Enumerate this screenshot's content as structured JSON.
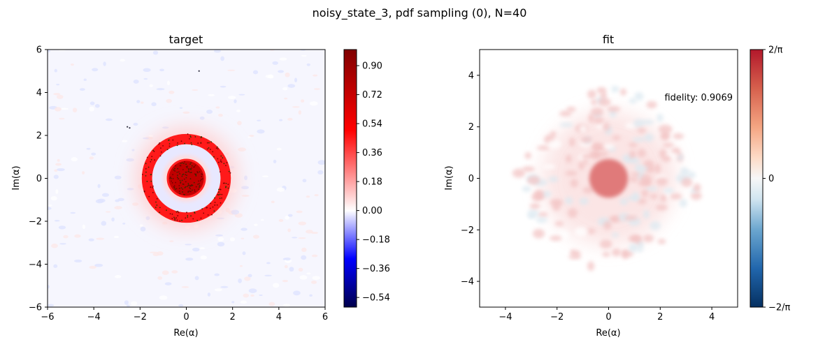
{
  "figure": {
    "suptitle": "noisy_state_3, pdf sampling (0), N=40"
  },
  "chart_data": [
    {
      "type": "heatmap",
      "title": "target",
      "xlabel": "Re(α)",
      "ylabel": "Im(α)",
      "xlim": [
        -6,
        6
      ],
      "ylim": [
        -6,
        6
      ],
      "xticks": [
        -6,
        -4,
        -2,
        0,
        2,
        4,
        6
      ],
      "yticks": [
        -6,
        -4,
        -2,
        0,
        2,
        4,
        6
      ],
      "colorbar": {
        "range": [
          -0.6,
          1.0
        ],
        "colormap": "seismic",
        "ticks": [
          0.9,
          0.72,
          0.54,
          0.36,
          0.18,
          0.0,
          -0.18,
          -0.36,
          -0.54
        ],
        "tick_labels": [
          "0.90",
          "0.72",
          "0.54",
          "0.36",
          "0.18",
          "0.00",
          "−0.18",
          "−0.36",
          "−0.54"
        ]
      },
      "features": {
        "central_disk": {
          "center": [
            0,
            0
          ],
          "radius": 0.8,
          "value": 1.0
        },
        "ring": {
          "center": [
            0,
            0
          ],
          "radius": 1.7,
          "width": 0.45,
          "value": 0.5
        },
        "negative_ring": {
          "center": [
            0,
            0
          ],
          "radius": 1.1,
          "value": -0.18
        }
      },
      "sample_points": [
        [
          -2.55,
          2.4
        ],
        [
          -2.45,
          2.35
        ],
        [
          0.55,
          5.0
        ]
      ]
    },
    {
      "type": "heatmap",
      "title": "fit",
      "xlabel": "Re(α)",
      "ylabel": "Im(α)",
      "xlim": [
        -5,
        5
      ],
      "ylim": [
        -5,
        5
      ],
      "xticks": [
        -4,
        -2,
        0,
        2,
        4
      ],
      "yticks": [
        -4,
        -2,
        0,
        2,
        4
      ],
      "annotation": "fidelity: 0.9069",
      "colorbar": {
        "range": [
          -0.6366,
          0.6366
        ],
        "colormap": "RdBu_r",
        "ticks": [
          0.6366,
          0,
          -0.6366
        ],
        "tick_labels": [
          "2/π",
          "0",
          "−2/π"
        ]
      },
      "features": {
        "central_blob": {
          "center": [
            0,
            0
          ],
          "radius": 0.75,
          "value": 0.35
        }
      }
    }
  ]
}
